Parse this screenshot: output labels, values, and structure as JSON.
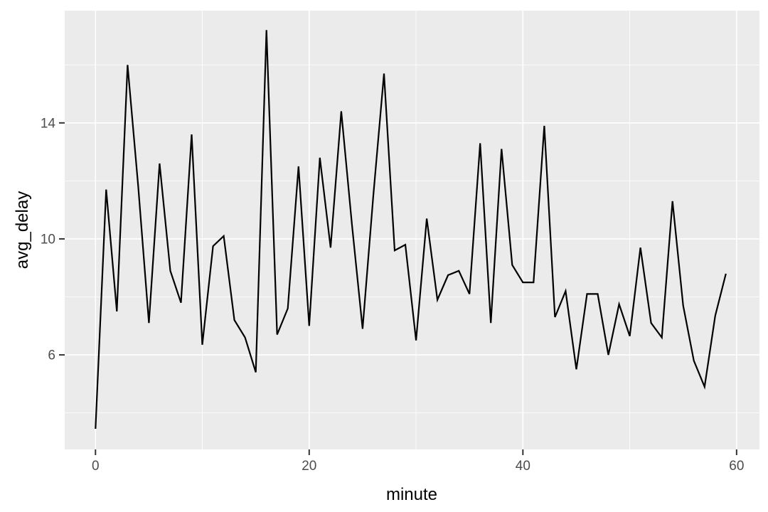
{
  "figure": {
    "background": "#FFFFFF",
    "panel_background": "#EBEBEB",
    "grid_color": "#FFFFFF",
    "series_color": "#000000",
    "tick_mark_color": "#333333",
    "tick_label_color": "#4D4D4D",
    "axis_title_color": "#000000"
  },
  "chart_data": {
    "type": "line",
    "title": "",
    "xlabel": "minute",
    "ylabel": "avg_delay",
    "x": [
      0,
      1,
      2,
      3,
      4,
      5,
      6,
      7,
      8,
      9,
      10,
      11,
      12,
      13,
      14,
      15,
      16,
      17,
      18,
      19,
      20,
      21,
      22,
      23,
      24,
      25,
      26,
      27,
      28,
      29,
      30,
      31,
      32,
      33,
      34,
      35,
      36,
      37,
      38,
      39,
      40,
      41,
      42,
      43,
      44,
      45,
      46,
      47,
      48,
      49,
      50,
      51,
      52,
      53,
      54,
      55,
      56,
      57,
      58,
      59
    ],
    "y": [
      3.45,
      11.7,
      7.5,
      16.0,
      11.8,
      7.1,
      12.6,
      8.9,
      7.8,
      13.6,
      6.35,
      9.75,
      10.1,
      7.2,
      6.6,
      5.4,
      17.2,
      6.7,
      7.6,
      12.5,
      7.0,
      12.8,
      9.7,
      14.4,
      10.5,
      6.9,
      11.5,
      15.7,
      9.6,
      9.8,
      6.5,
      10.7,
      7.9,
      8.75,
      8.9,
      8.1,
      13.3,
      7.1,
      13.1,
      9.1,
      8.5,
      8.5,
      13.9,
      7.3,
      8.2,
      5.5,
      8.1,
      8.1,
      6.0,
      7.75,
      6.65,
      9.7,
      7.1,
      6.6,
      11.3,
      7.7,
      5.8,
      4.9,
      7.35,
      8.8
    ],
    "x_ticks": [
      0,
      20,
      40,
      60
    ],
    "x_minor_ticks": [
      10,
      30,
      50
    ],
    "y_ticks": [
      6,
      10,
      14
    ],
    "y_minor_ticks": [
      4,
      8,
      12,
      16
    ],
    "xlim": [
      -2.88,
      62.14
    ],
    "ylim": [
      2.74,
      17.87
    ],
    "grid": "on",
    "legend": "none"
  }
}
